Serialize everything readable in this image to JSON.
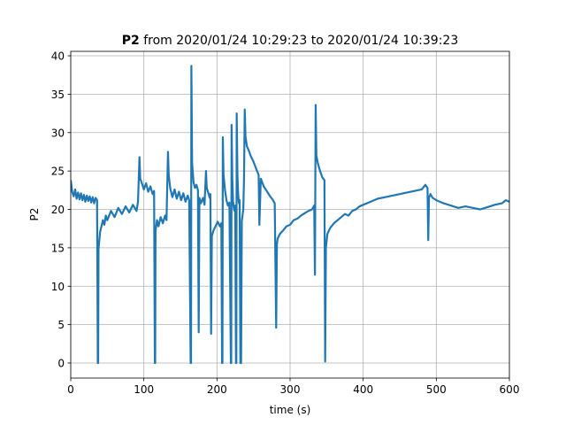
{
  "chart_data": {
    "type": "line",
    "title": {
      "bold": "P2",
      "text": "from 2020/01/24 10:29:23 to 2020/01/24 10:39:23"
    },
    "x_label": "time (s)",
    "y_label": "P2",
    "xlim": [
      0,
      600
    ],
    "ylim": [
      -1.96,
      40.58
    ],
    "xticks": [
      0,
      100,
      200,
      300,
      400,
      500,
      600
    ],
    "yticks": [
      0,
      5,
      10,
      15,
      20,
      25,
      30,
      35,
      40
    ],
    "grid": true,
    "series": [
      {
        "name": "P2",
        "color": "#1f77b4",
        "x": [
          0,
          2,
          4,
          6,
          8,
          10,
          12,
          14,
          16,
          18,
          20,
          22,
          24,
          26,
          28,
          30,
          32,
          34,
          36,
          37,
          37.5,
          38,
          40,
          42,
          44,
          46,
          48,
          50,
          55,
          60,
          65,
          70,
          75,
          80,
          85,
          90,
          92,
          94,
          95,
          97,
          100,
          103,
          106,
          109,
          112,
          114,
          115,
          115.5,
          116,
          118,
          120,
          123,
          126,
          129,
          131,
          133,
          134,
          136,
          139,
          142,
          145,
          148,
          151,
          154,
          157,
          160,
          162,
          164,
          164.5,
          165,
          166,
          168,
          170,
          172,
          174,
          175,
          176,
          178,
          181,
          183,
          185,
          186,
          188,
          190,
          191,
          192,
          193,
          195,
          198,
          201,
          204,
          206,
          207,
          207.5,
          208,
          209,
          211,
          213,
          215,
          217,
          219,
          219.5,
          220,
          221,
          222,
          223,
          224,
          225,
          226,
          226.5,
          227,
          228,
          229,
          230,
          231,
          232,
          233,
          234,
          236,
          237,
          238,
          239,
          241,
          243,
          246,
          250,
          254,
          257,
          258,
          260,
          264,
          268,
          272,
          276,
          279,
          281,
          282,
          283,
          286,
          290,
          295,
          300,
          305,
          310,
          315,
          320,
          325,
          330,
          333,
          334,
          335,
          336,
          338,
          341,
          344,
          347,
          348,
          349,
          351,
          355,
          360,
          365,
          370,
          375,
          380,
          385,
          390,
          395,
          400,
          410,
          420,
          430,
          440,
          450,
          460,
          470,
          480,
          485,
          488,
          489,
          490,
          492,
          495,
          500,
          510,
          520,
          530,
          540,
          550,
          560,
          570,
          580,
          590,
          595,
          600
        ],
        "values": [
          23.8,
          22.3,
          21.7,
          22.6,
          21.4,
          22.2,
          21.3,
          22.1,
          21.2,
          21.9,
          21.0,
          21.8,
          21.1,
          21.7,
          20.9,
          21.6,
          20.8,
          21.5,
          21.2,
          0,
          0,
          14.8,
          17.0,
          17.8,
          18.6,
          18.0,
          19.2,
          18.6,
          19.8,
          19.0,
          20.2,
          19.4,
          20.4,
          19.6,
          20.6,
          19.8,
          21.0,
          26.8,
          24.0,
          23.5,
          22.6,
          23.4,
          22.3,
          23.0,
          22.0,
          22.4,
          0,
          0,
          17.2,
          18.6,
          17.8,
          19.0,
          18.2,
          19.2,
          18.6,
          27.5,
          24.5,
          22.8,
          21.6,
          22.6,
          21.4,
          22.3,
          21.2,
          22.1,
          21.0,
          21.8,
          21.2,
          0,
          0,
          38.7,
          26.0,
          23.5,
          22.8,
          23.2,
          22.5,
          4.0,
          21.5,
          20.8,
          21.5,
          20.6,
          25.0,
          22.8,
          22.2,
          21.5,
          22.0,
          3.8,
          16.5,
          17.2,
          17.8,
          18.4,
          17.8,
          18.2,
          0,
          0,
          29.4,
          24.5,
          22.5,
          21.2,
          20.5,
          20.9,
          0,
          0,
          31.0,
          24.0,
          21.0,
          20.2,
          19.8,
          20.5,
          0,
          0,
          32.5,
          24.5,
          22.0,
          20.8,
          21.2,
          0,
          0,
          18.5,
          20.0,
          24.0,
          33.0,
          29.5,
          28.2,
          27.8,
          27.0,
          26.2,
          25.2,
          24.5,
          18.0,
          24.0,
          23.0,
          22.4,
          21.8,
          21.3,
          20.8,
          4.6,
          15.5,
          16.2,
          16.8,
          17.2,
          17.8,
          18.0,
          18.6,
          18.8,
          19.2,
          19.5,
          19.8,
          20.0,
          20.5,
          11.5,
          33.6,
          27.0,
          26.0,
          25.0,
          24.2,
          23.8,
          0.2,
          15.0,
          16.8,
          17.6,
          18.2,
          18.6,
          19.0,
          19.4,
          19.2,
          19.8,
          20.0,
          20.4,
          20.6,
          21.0,
          21.4,
          21.6,
          21.8,
          22.0,
          22.2,
          22.4,
          22.6,
          23.2,
          22.8,
          16.0,
          21.5,
          22.0,
          21.5,
          21.2,
          20.8,
          20.5,
          20.2,
          20.4,
          20.2,
          20.0,
          20.3,
          20.6,
          20.8,
          21.2,
          21.0
        ]
      }
    ]
  }
}
